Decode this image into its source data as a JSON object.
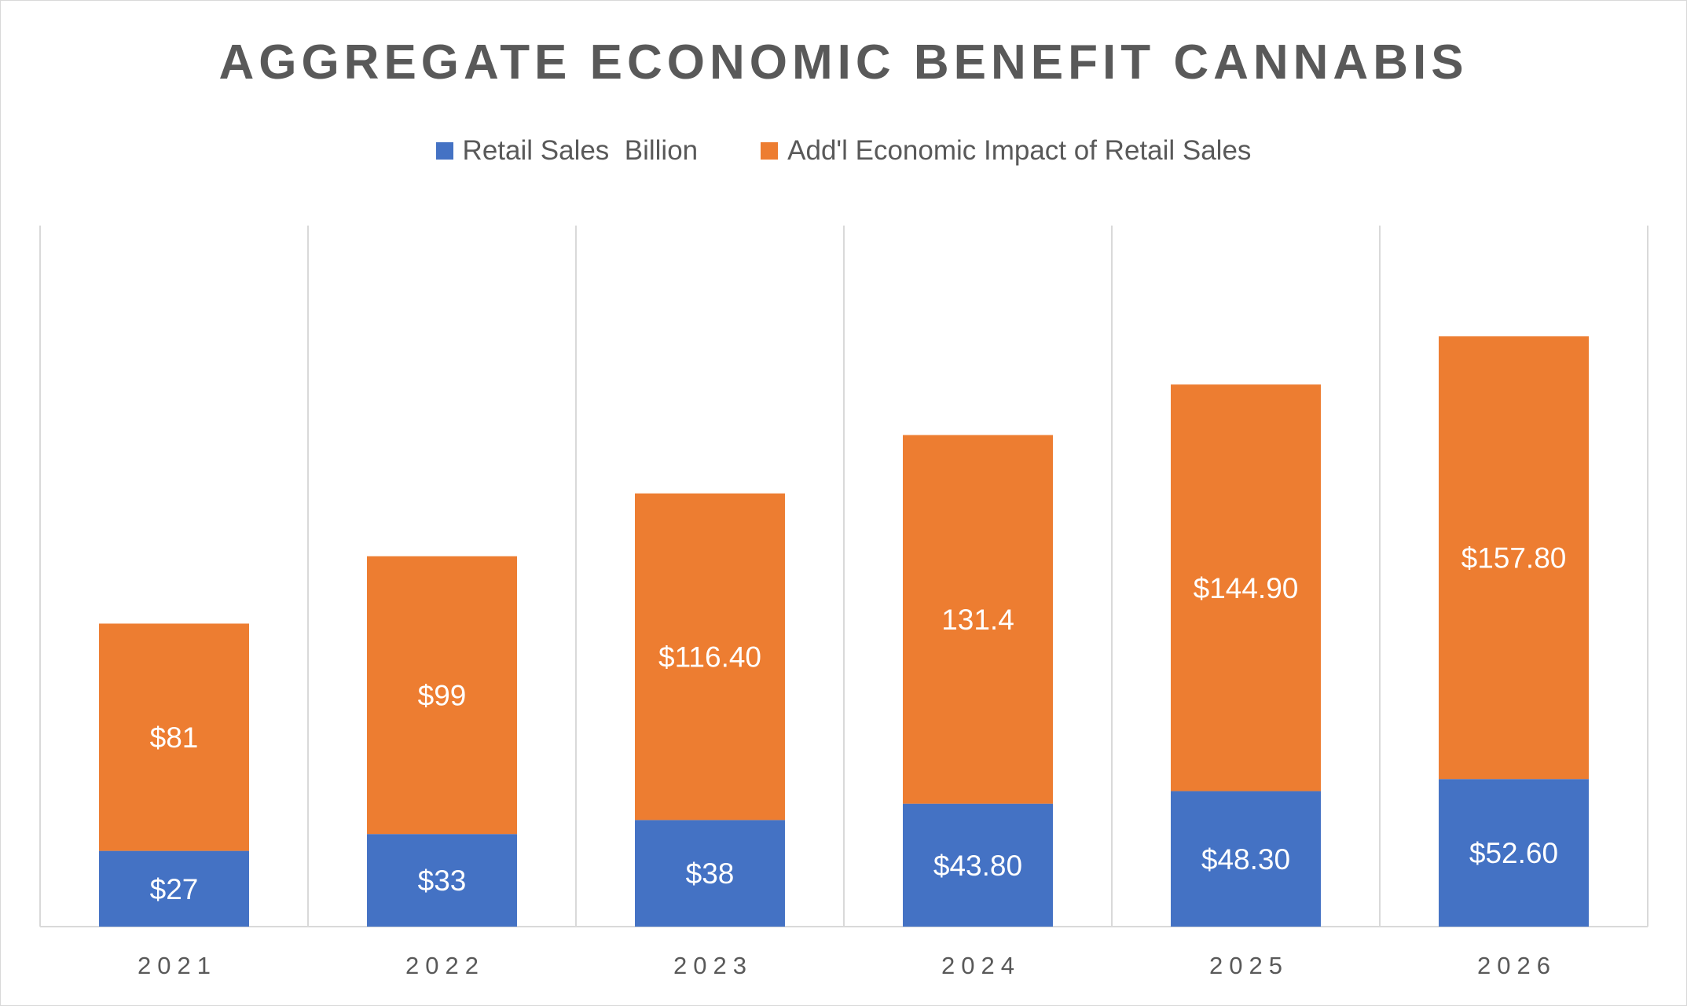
{
  "chart_data": {
    "type": "bar",
    "stacked": true,
    "title": "AGGREGATE ECONOMIC BENEFIT CANNABIS",
    "categories": [
      "2021",
      "2022",
      "2023",
      "2024",
      "2025",
      "2026"
    ],
    "series": [
      {
        "name": "Retail Sales  Billion",
        "color": "#4472C4",
        "values": [
          27,
          33,
          38,
          43.8,
          48.3,
          52.6
        ],
        "labels": [
          "$27",
          "$33",
          "$38",
          "$43.80",
          "$48.30",
          "$52.60"
        ]
      },
      {
        "name": "Add'l Economic Impact of Retail Sales",
        "color": "#ED7D31",
        "values": [
          81,
          99,
          116.4,
          131.4,
          144.9,
          157.8
        ],
        "labels": [
          "$81",
          "$99",
          "$116.40",
          "131.4",
          "$144.90",
          "$157.80"
        ]
      }
    ],
    "ylim": [
      0,
      250
    ],
    "grid": "vertical category separators",
    "legend": "top-center"
  }
}
